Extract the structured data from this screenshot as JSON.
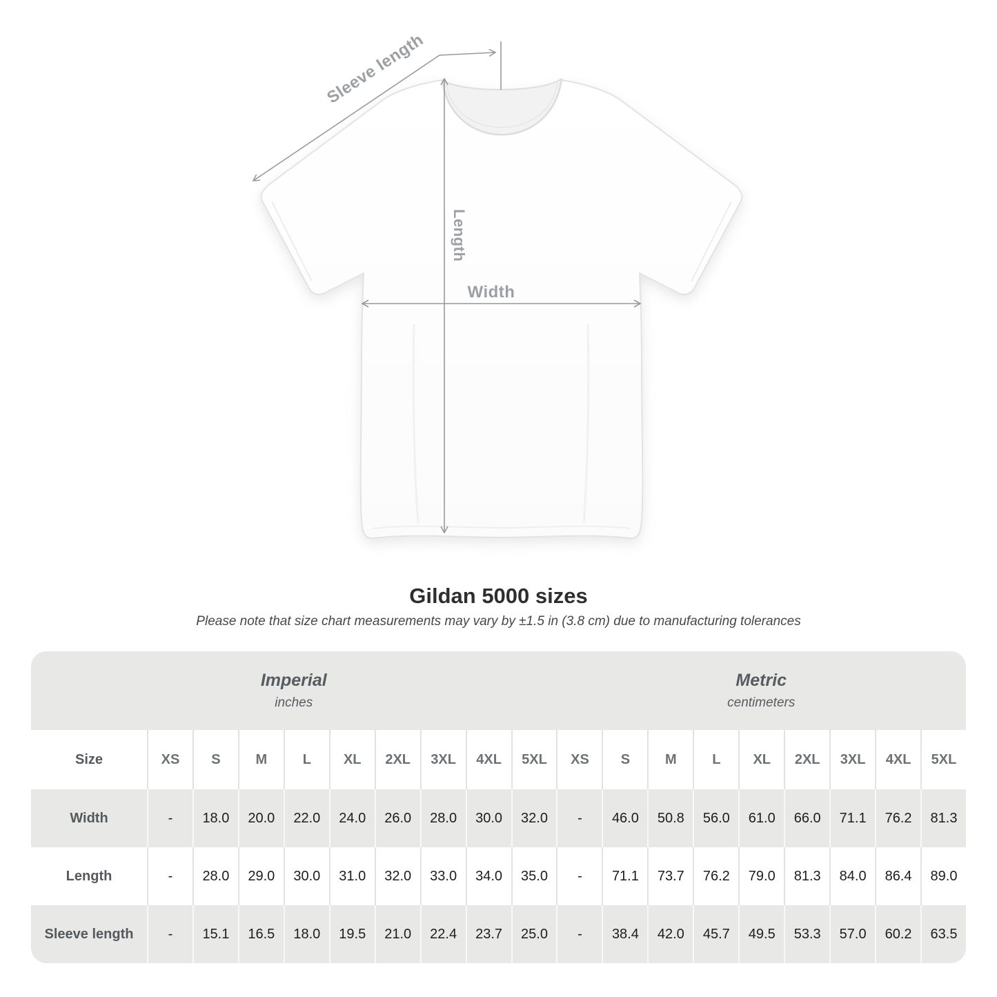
{
  "diagram": {
    "labels": {
      "sleeve_length": "Sleeve length",
      "length": "Length",
      "width": "Width"
    },
    "line_color": "#97999b"
  },
  "heading": {
    "title": "Gildan 5000 sizes",
    "note": "Please note that size chart measurements may vary by ±1.5 in (3.8 cm) due to manufacturing tolerances"
  },
  "table": {
    "size_header_label": "Size",
    "unit_groups": [
      {
        "name": "Imperial",
        "unit": "inches"
      },
      {
        "name": "Metric",
        "unit": "centimeters"
      }
    ],
    "sizes": [
      "XS",
      "S",
      "M",
      "L",
      "XL",
      "2XL",
      "3XL",
      "4XL",
      "5XL"
    ],
    "rows": [
      {
        "label": "Width",
        "imperial": [
          "-",
          "18.0",
          "20.0",
          "22.0",
          "24.0",
          "26.0",
          "28.0",
          "30.0",
          "32.0"
        ],
        "metric": [
          "-",
          "46.0",
          "50.8",
          "56.0",
          "61.0",
          "66.0",
          "71.1",
          "76.2",
          "81.3"
        ]
      },
      {
        "label": "Length",
        "imperial": [
          "-",
          "28.0",
          "29.0",
          "30.0",
          "31.0",
          "32.0",
          "33.0",
          "34.0",
          "35.0"
        ],
        "metric": [
          "-",
          "71.1",
          "73.7",
          "76.2",
          "79.0",
          "81.3",
          "84.0",
          "86.4",
          "89.0"
        ]
      },
      {
        "label": "Sleeve length",
        "imperial": [
          "-",
          "15.1",
          "16.5",
          "18.0",
          "19.5",
          "21.0",
          "22.4",
          "23.7",
          "25.0"
        ],
        "metric": [
          "-",
          "38.4",
          "42.0",
          "45.7",
          "49.5",
          "53.3",
          "57.0",
          "60.2",
          "63.5"
        ]
      }
    ],
    "colors": {
      "stripe": "#e8e8e7",
      "band": "#e8e8e7"
    }
  }
}
